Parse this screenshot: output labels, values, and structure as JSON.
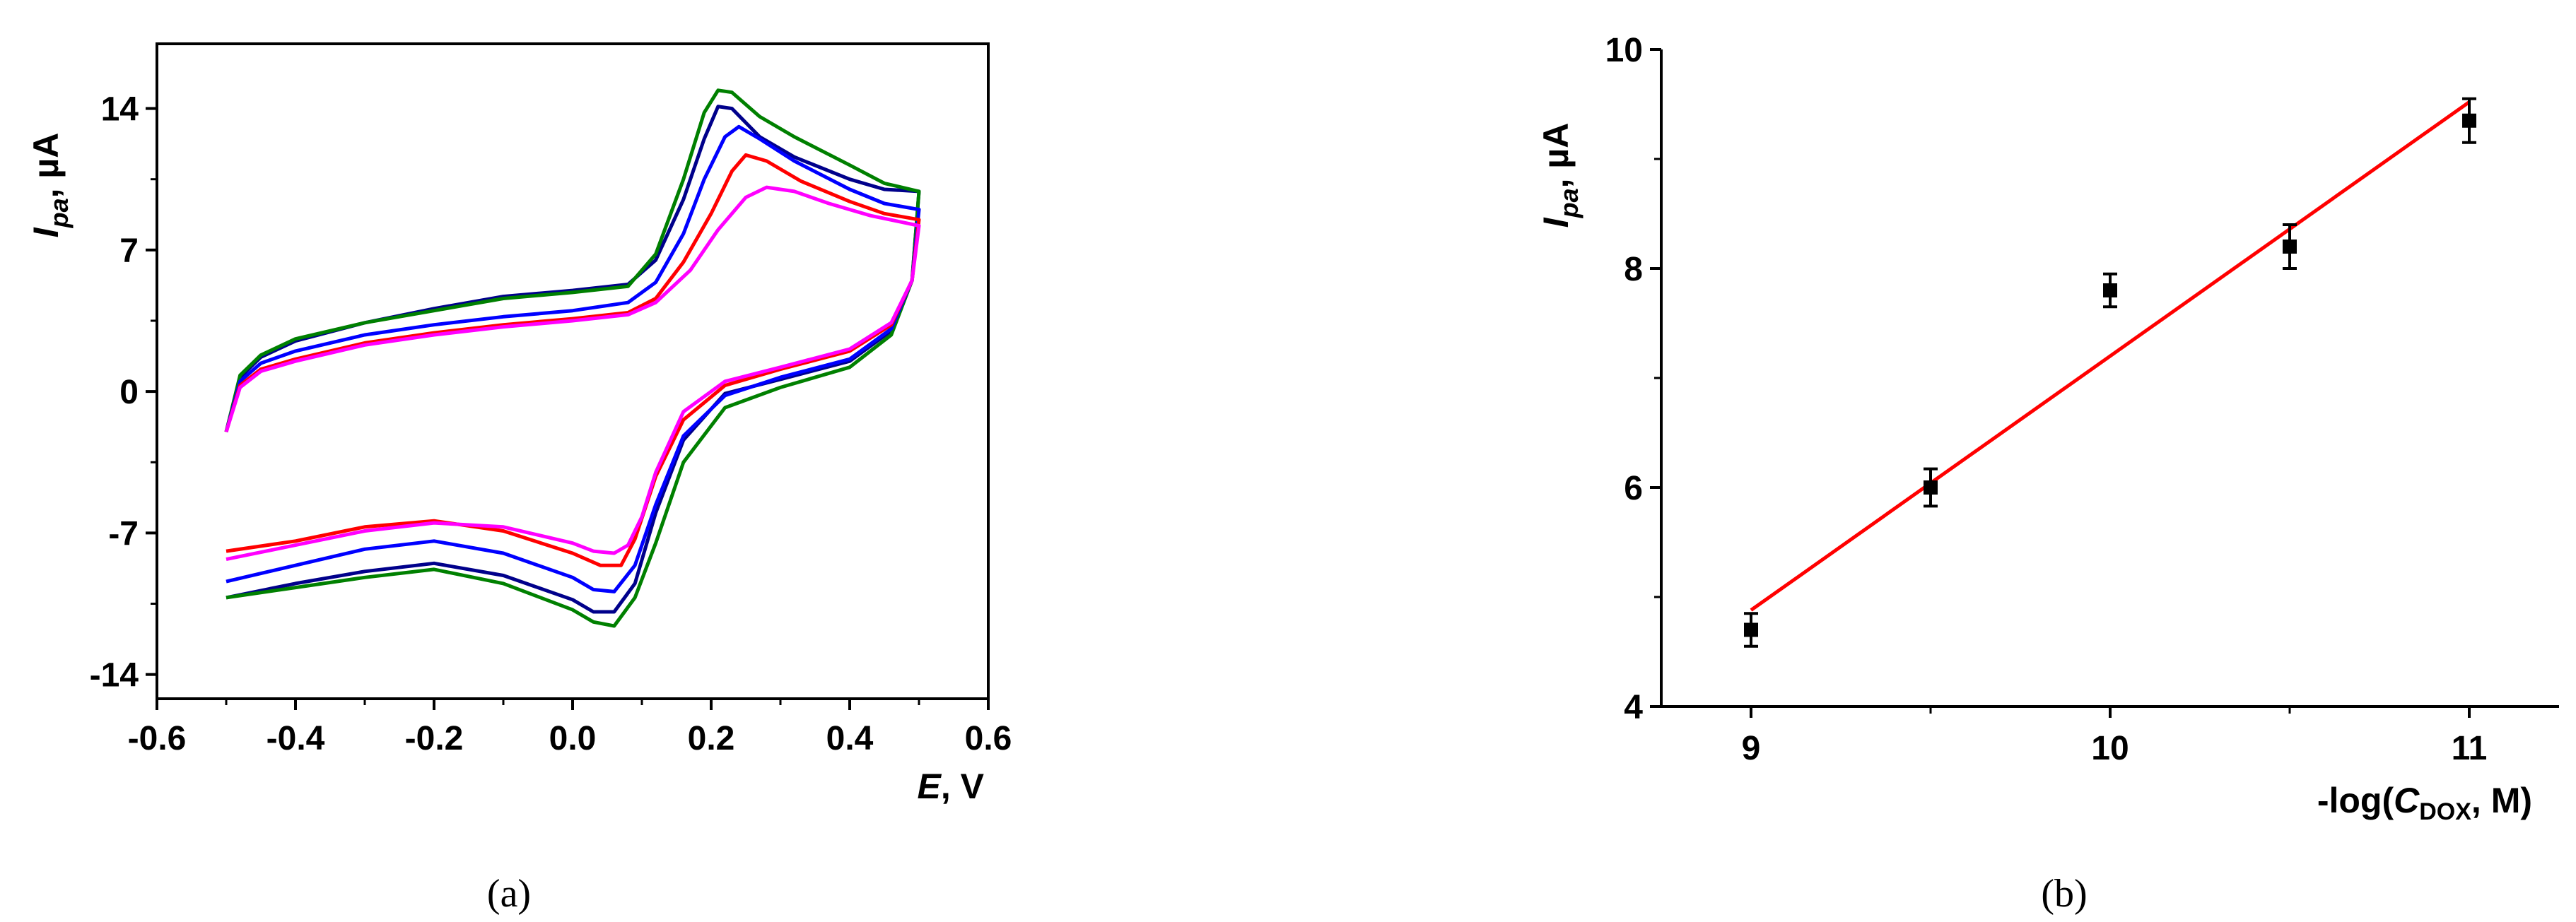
{
  "chart_data": [
    {
      "panel": "a",
      "type": "line",
      "caption": "(a)",
      "xlabel": {
        "main": "E",
        "suffix": ", V"
      },
      "ylabel": {
        "main": "I",
        "sub": "pa",
        "suffix": ", µA"
      },
      "xlim": [
        -0.6,
        0.6
      ],
      "ylim": [
        -15.2,
        17.2
      ],
      "xticks": [
        -0.6,
        -0.4,
        -0.2,
        0.0,
        0.2,
        0.4,
        0.6
      ],
      "xtick_labels": [
        "-0.6",
        "-0.4",
        "-0.2",
        "0.0",
        "0.2",
        "0.4",
        "0.6"
      ],
      "yticks": [
        14,
        7,
        0,
        -7,
        -14
      ],
      "ytick_labels": [
        "14",
        "7",
        "0",
        "-7",
        "-14"
      ],
      "grid": false,
      "series": [
        {
          "color": "#00008b",
          "forward": [
            [
              -0.5,
              -2.0
            ],
            [
              -0.48,
              0.7
            ],
            [
              -0.45,
              1.7
            ],
            [
              -0.4,
              2.5
            ],
            [
              -0.3,
              3.4
            ],
            [
              -0.2,
              4.1
            ],
            [
              -0.1,
              4.7
            ],
            [
              0.0,
              5.0
            ],
            [
              0.08,
              5.3
            ],
            [
              0.12,
              6.5
            ],
            [
              0.16,
              9.5
            ],
            [
              0.19,
              12.5
            ],
            [
              0.21,
              14.1
            ],
            [
              0.23,
              14.0
            ],
            [
              0.27,
              12.6
            ],
            [
              0.32,
              11.6
            ],
            [
              0.4,
              10.5
            ],
            [
              0.45,
              10.0
            ],
            [
              0.5,
              9.9
            ]
          ],
          "reverse": [
            [
              0.5,
              9.9
            ],
            [
              0.49,
              5.5
            ],
            [
              0.46,
              3.0
            ],
            [
              0.4,
              1.5
            ],
            [
              0.3,
              0.6
            ],
            [
              0.22,
              -0.1
            ],
            [
              0.16,
              -2.4
            ],
            [
              0.12,
              -6.0
            ],
            [
              0.09,
              -9.5
            ],
            [
              0.06,
              -10.9
            ],
            [
              0.03,
              -10.9
            ],
            [
              0.0,
              -10.3
            ],
            [
              -0.1,
              -9.1
            ],
            [
              -0.2,
              -8.5
            ],
            [
              -0.3,
              -8.9
            ],
            [
              -0.4,
              -9.5
            ],
            [
              -0.5,
              -10.2
            ]
          ],
          "color_key": "black"
        },
        {
          "color": "#008000",
          "forward": [
            [
              -0.5,
              -2.0
            ],
            [
              -0.48,
              0.8
            ],
            [
              -0.45,
              1.8
            ],
            [
              -0.4,
              2.6
            ],
            [
              -0.3,
              3.4
            ],
            [
              -0.2,
              4.0
            ],
            [
              -0.1,
              4.6
            ],
            [
              0.0,
              4.9
            ],
            [
              0.08,
              5.2
            ],
            [
              0.12,
              6.8
            ],
            [
              0.16,
              10.5
            ],
            [
              0.19,
              13.8
            ],
            [
              0.21,
              14.9
            ],
            [
              0.23,
              14.8
            ],
            [
              0.27,
              13.6
            ],
            [
              0.32,
              12.6
            ],
            [
              0.4,
              11.2
            ],
            [
              0.45,
              10.3
            ],
            [
              0.5,
              9.9
            ]
          ],
          "reverse": [
            [
              0.5,
              9.9
            ],
            [
              0.49,
              5.5
            ],
            [
              0.46,
              2.8
            ],
            [
              0.4,
              1.2
            ],
            [
              0.3,
              0.2
            ],
            [
              0.22,
              -0.8
            ],
            [
              0.16,
              -3.5
            ],
            [
              0.12,
              -7.5
            ],
            [
              0.09,
              -10.2
            ],
            [
              0.06,
              -11.6
            ],
            [
              0.03,
              -11.4
            ],
            [
              0.0,
              -10.8
            ],
            [
              -0.1,
              -9.5
            ],
            [
              -0.2,
              -8.8
            ],
            [
              -0.3,
              -9.2
            ],
            [
              -0.4,
              -9.7
            ],
            [
              -0.5,
              -10.2
            ]
          ],
          "color_key": "green"
        },
        {
          "color": "#0000ff",
          "forward": [
            [
              -0.5,
              -2.0
            ],
            [
              -0.48,
              0.5
            ],
            [
              -0.45,
              1.4
            ],
            [
              -0.4,
              2.0
            ],
            [
              -0.3,
              2.8
            ],
            [
              -0.2,
              3.3
            ],
            [
              -0.1,
              3.7
            ],
            [
              0.0,
              4.0
            ],
            [
              0.08,
              4.4
            ],
            [
              0.12,
              5.4
            ],
            [
              0.16,
              7.8
            ],
            [
              0.19,
              10.5
            ],
            [
              0.22,
              12.6
            ],
            [
              0.24,
              13.1
            ],
            [
              0.27,
              12.5
            ],
            [
              0.32,
              11.4
            ],
            [
              0.4,
              10.0
            ],
            [
              0.45,
              9.3
            ],
            [
              0.5,
              9.0
            ]
          ],
          "reverse": [
            [
              0.5,
              9.0
            ],
            [
              0.49,
              5.5
            ],
            [
              0.46,
              3.1
            ],
            [
              0.4,
              1.6
            ],
            [
              0.3,
              0.7
            ],
            [
              0.22,
              -0.2
            ],
            [
              0.16,
              -2.2
            ],
            [
              0.12,
              -5.6
            ],
            [
              0.09,
              -8.6
            ],
            [
              0.06,
              -9.9
            ],
            [
              0.03,
              -9.8
            ],
            [
              0.0,
              -9.2
            ],
            [
              -0.1,
              -8.0
            ],
            [
              -0.2,
              -7.4
            ],
            [
              -0.3,
              -7.8
            ],
            [
              -0.4,
              -8.6
            ],
            [
              -0.5,
              -9.4
            ]
          ],
          "color_key": "blue"
        },
        {
          "color": "#ff0000",
          "forward": [
            [
              -0.5,
              -2.0
            ],
            [
              -0.48,
              0.3
            ],
            [
              -0.45,
              1.1
            ],
            [
              -0.4,
              1.6
            ],
            [
              -0.3,
              2.4
            ],
            [
              -0.2,
              2.9
            ],
            [
              -0.1,
              3.3
            ],
            [
              0.0,
              3.6
            ],
            [
              0.08,
              3.9
            ],
            [
              0.12,
              4.6
            ],
            [
              0.16,
              6.4
            ],
            [
              0.2,
              8.8
            ],
            [
              0.23,
              10.9
            ],
            [
              0.25,
              11.7
            ],
            [
              0.28,
              11.4
            ],
            [
              0.33,
              10.4
            ],
            [
              0.4,
              9.4
            ],
            [
              0.45,
              8.8
            ],
            [
              0.5,
              8.5
            ]
          ],
          "reverse": [
            [
              0.5,
              8.5
            ],
            [
              0.49,
              5.5
            ],
            [
              0.46,
              3.3
            ],
            [
              0.4,
              2.0
            ],
            [
              0.3,
              1.1
            ],
            [
              0.22,
              0.3
            ],
            [
              0.16,
              -1.4
            ],
            [
              0.12,
              -4.2
            ],
            [
              0.09,
              -7.3
            ],
            [
              0.07,
              -8.6
            ],
            [
              0.04,
              -8.6
            ],
            [
              0.0,
              -8.0
            ],
            [
              -0.1,
              -6.9
            ],
            [
              -0.2,
              -6.4
            ],
            [
              -0.3,
              -6.7
            ],
            [
              -0.4,
              -7.4
            ],
            [
              -0.5,
              -7.9
            ]
          ],
          "color_key": "red"
        },
        {
          "color": "#ff00ff",
          "forward": [
            [
              -0.5,
              -2.0
            ],
            [
              -0.48,
              0.2
            ],
            [
              -0.45,
              1.0
            ],
            [
              -0.4,
              1.5
            ],
            [
              -0.3,
              2.3
            ],
            [
              -0.2,
              2.8
            ],
            [
              -0.1,
              3.2
            ],
            [
              0.0,
              3.5
            ],
            [
              0.08,
              3.8
            ],
            [
              0.12,
              4.4
            ],
            [
              0.17,
              6.0
            ],
            [
              0.21,
              8.0
            ],
            [
              0.25,
              9.6
            ],
            [
              0.28,
              10.1
            ],
            [
              0.32,
              9.9
            ],
            [
              0.37,
              9.3
            ],
            [
              0.43,
              8.7
            ],
            [
              0.5,
              8.2
            ]
          ],
          "reverse": [
            [
              0.5,
              8.2
            ],
            [
              0.49,
              5.5
            ],
            [
              0.46,
              3.4
            ],
            [
              0.4,
              2.1
            ],
            [
              0.3,
              1.2
            ],
            [
              0.22,
              0.5
            ],
            [
              0.16,
              -1.0
            ],
            [
              0.12,
              -4.0
            ],
            [
              0.1,
              -6.2
            ],
            [
              0.08,
              -7.6
            ],
            [
              0.06,
              -8.0
            ],
            [
              0.03,
              -7.9
            ],
            [
              0.0,
              -7.5
            ],
            [
              -0.1,
              -6.7
            ],
            [
              -0.2,
              -6.5
            ],
            [
              -0.3,
              -6.9
            ],
            [
              -0.4,
              -7.6
            ],
            [
              -0.5,
              -8.3
            ]
          ],
          "color_key": "magenta"
        }
      ]
    },
    {
      "panel": "b",
      "type": "scatter",
      "caption": "(b)",
      "xlabel": {
        "prefix": "-log(",
        "main": "C",
        "sub": "DOX",
        "suffix": ", M)"
      },
      "ylabel": {
        "main": "I",
        "sub": "pa",
        "suffix": ", µA"
      },
      "xlim": [
        8.75,
        11.25
      ],
      "ylim": [
        4,
        10
      ],
      "xticks": [
        9,
        9.5,
        10,
        10.5,
        11
      ],
      "xtick_labels": [
        "9",
        "",
        "10",
        "",
        "11"
      ],
      "yticks": [
        4,
        5,
        6,
        7,
        8,
        9,
        10
      ],
      "ytick_labels": [
        "4",
        "",
        "6",
        "",
        "8",
        "",
        "10"
      ],
      "grid": false,
      "points": [
        {
          "x": 9.0,
          "y": 4.7,
          "err": 0.15
        },
        {
          "x": 9.5,
          "y": 6.0,
          "err": 0.17
        },
        {
          "x": 10.0,
          "y": 7.8,
          "err": 0.15
        },
        {
          "x": 10.5,
          "y": 8.2,
          "err": 0.2
        },
        {
          "x": 11.0,
          "y": 9.35,
          "err": 0.2
        }
      ],
      "marker_color": "#000000",
      "fit_line": {
        "x": [
          9.0,
          11.0
        ],
        "y": [
          4.88,
          9.52
        ],
        "color": "#ff0000"
      }
    }
  ]
}
